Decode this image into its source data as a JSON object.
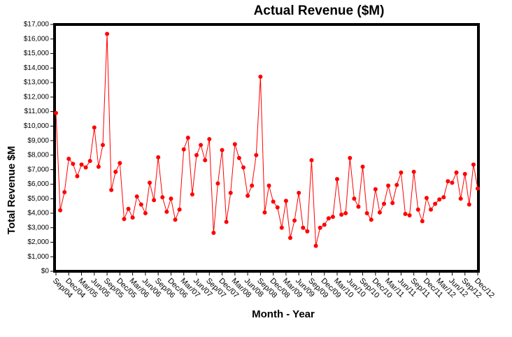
{
  "chart_data": {
    "type": "line",
    "title": "Actual Revenue ($M)",
    "x_label": "Month - Year",
    "y_label": "Total Revenue $M",
    "categories": [
      "Sep/04",
      null,
      null,
      "Dec/04",
      null,
      null,
      "Mar/05",
      null,
      null,
      "Jun/05",
      null,
      null,
      "Sep/05",
      null,
      null,
      "Dec/05",
      null,
      null,
      "Mar/06",
      null,
      null,
      "Jun/06",
      null,
      null,
      "Sep/06",
      null,
      null,
      "Dec/06",
      null,
      null,
      "Mar/07",
      null,
      null,
      "Jun/07",
      null,
      null,
      "Sep/07",
      null,
      null,
      "Dec/07",
      null,
      null,
      "Mar/08",
      null,
      null,
      "Jun/08",
      null,
      null,
      "Sep/08",
      null,
      null,
      "Dec/08",
      null,
      null,
      "Mar/09",
      null,
      null,
      "Jun/09",
      null,
      null,
      "Sep/09",
      null,
      null,
      "Dec/09",
      null,
      null,
      "Mar/10",
      null,
      null,
      "Jun/10",
      null,
      null,
      "Sep/10",
      null,
      null,
      "Dec/10",
      null,
      null,
      "Mar/11",
      null,
      null,
      "Jun/11",
      null,
      null,
      "Sep/11",
      null,
      null,
      "Dec/11",
      null,
      null,
      "Mar/12",
      null,
      null,
      "Jun/12",
      null,
      null,
      "Sep/12",
      null,
      null,
      "Dec/12"
    ],
    "values": [
      10900,
      4200,
      5450,
      7750,
      7400,
      6550,
      7350,
      7150,
      7600,
      9900,
      7200,
      8700,
      16350,
      5600,
      6850,
      7450,
      3600,
      4300,
      3700,
      5150,
      4600,
      4000,
      6100,
      4900,
      7850,
      5100,
      4100,
      5000,
      3550,
      4250,
      8400,
      9200,
      5300,
      8000,
      8700,
      7650,
      9100,
      2650,
      6050,
      8350,
      3400,
      5400,
      8750,
      7800,
      7150,
      5200,
      5900,
      8000,
      13400,
      4050,
      5900,
      4800,
      4400,
      3000,
      4850,
      2300,
      3500,
      5400,
      3000,
      2750,
      7650,
      1750,
      3000,
      3200,
      3650,
      3750,
      6350,
      3900,
      4000,
      7800,
      5000,
      4450,
      7200,
      4000,
      3550,
      5650,
      4050,
      4650,
      5900,
      4700,
      5950,
      6800,
      3950,
      3850,
      6850,
      4250,
      3450,
      5050,
      4250,
      4650,
      4950,
      5100,
      6200,
      6100,
      6800,
      5000,
      6700,
      4600,
      7350,
      5700
    ],
    "color": "#ff0000",
    "ylim": [
      0,
      17000
    ],
    "yticks": [
      {
        "value": 0,
        "label": "$0"
      },
      {
        "value": 1000,
        "label": "$1,000"
      },
      {
        "value": 2000,
        "label": "$2,000"
      },
      {
        "value": 3000,
        "label": "$3,000"
      },
      {
        "value": 4000,
        "label": "$4,000"
      },
      {
        "value": 5000,
        "label": "$5,000"
      },
      {
        "value": 6000,
        "label": "$6,000"
      },
      {
        "value": 7000,
        "label": "$7,000"
      },
      {
        "value": 8000,
        "label": "$8,000"
      },
      {
        "value": 9000,
        "label": "$9,000"
      },
      {
        "value": 10000,
        "label": "$10,000"
      },
      {
        "value": 11000,
        "label": "$11,000"
      },
      {
        "value": 12000,
        "label": "$12,000"
      },
      {
        "value": 13000,
        "label": "$13,000"
      },
      {
        "value": 14000,
        "label": "$14,000"
      },
      {
        "value": 15000,
        "label": "$15,000"
      },
      {
        "value": 16000,
        "label": "$16,000"
      },
      {
        "value": 17000,
        "label": "$17,000"
      }
    ]
  }
}
